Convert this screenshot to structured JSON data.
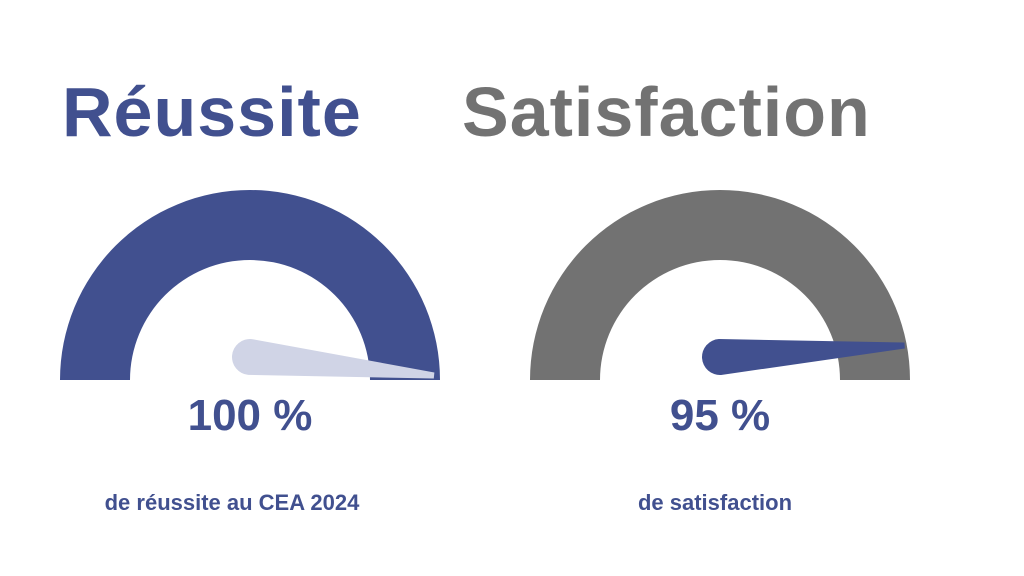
{
  "colors": {
    "blue": "#41508F",
    "gray": "#727272",
    "light_needle": "#D0D4E6",
    "background": "#FFFFFF"
  },
  "left": {
    "title": "Réussite",
    "value_text": "100 %",
    "caption": "de réussite au CEA 2024",
    "gauge_fraction": 1.0
  },
  "right": {
    "title": "Satisfaction",
    "value_text": "95 %",
    "caption": "de satisfaction",
    "gauge_fraction": 0.95
  }
}
